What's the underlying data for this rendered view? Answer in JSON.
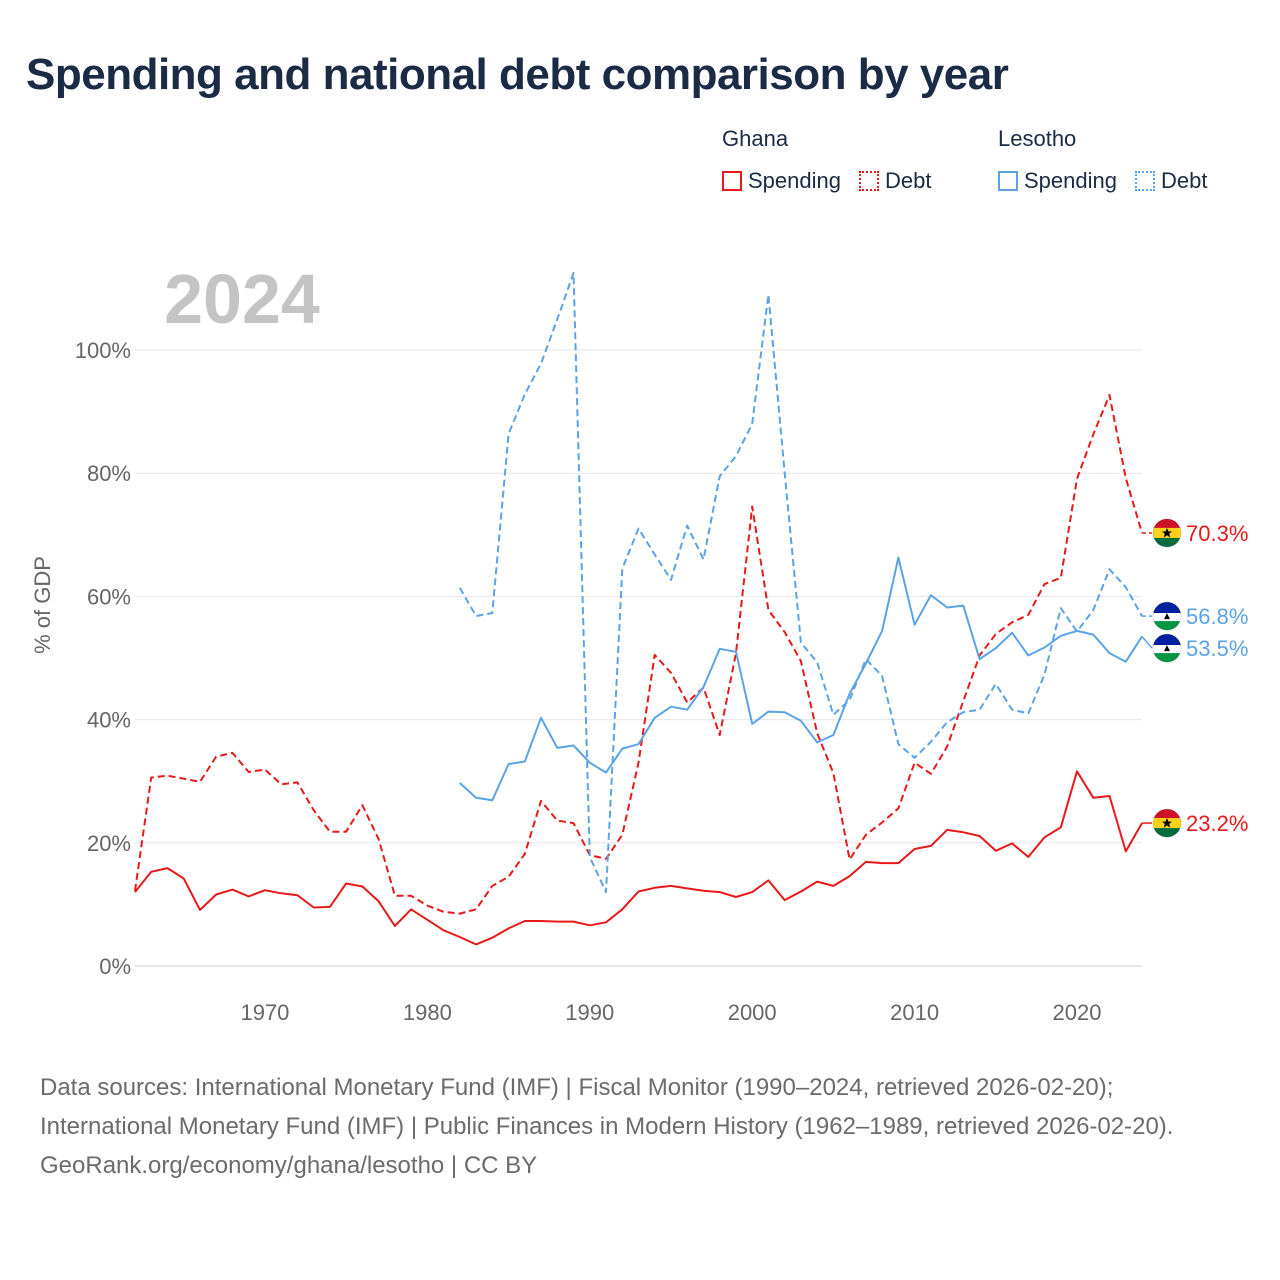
{
  "title": "Spending and national debt comparison by year",
  "legend": [
    {
      "country": "Ghana",
      "items": [
        {
          "label": "Spending",
          "style": "solid",
          "color": "#e8191a"
        },
        {
          "label": "Debt",
          "style": "dotted",
          "color": "#e8191a"
        }
      ]
    },
    {
      "country": "Lesotho",
      "items": [
        {
          "label": "Spending",
          "style": "solid",
          "color": "#5ba3e6"
        },
        {
          "label": "Debt",
          "style": "dotted",
          "color": "#5ba3e6"
        }
      ]
    }
  ],
  "footer": {
    "sources": "Data sources: International Monetary Fund (IMF) | Fiscal Monitor (1990–2024, retrieved 2026-02-20); International Monetary Fund (IMF) | Public Finances in Modern History (1962–1989, retrieved 2026-02-20).",
    "credit": "GeoRank.org/economy/ghana/lesotho | CC BY"
  },
  "chart_data": {
    "type": "line",
    "year_label": "2024",
    "ylabel": "% of GDP",
    "xlabel": "",
    "xlim": [
      1962,
      2024
    ],
    "ylim": [
      0,
      110
    ],
    "y_ticks": [
      0,
      20,
      40,
      60,
      80,
      100
    ],
    "y_tick_labels": [
      "0%",
      "20%",
      "40%",
      "60%",
      "80%",
      "100%"
    ],
    "x_ticks": [
      1970,
      1980,
      1990,
      2000,
      2010,
      2020
    ],
    "x_tick_labels": [
      "1970",
      "1980",
      "1990",
      "2000",
      "2010",
      "2020"
    ],
    "grid": true,
    "series": [
      {
        "name": "Ghana Spending",
        "country": "Ghana",
        "color": "#e8191a",
        "dash": false,
        "end_label": "23.2%",
        "flag": "ghana",
        "x": [
          1962,
          1963,
          1964,
          1965,
          1966,
          1967,
          1968,
          1969,
          1970,
          1971,
          1972,
          1973,
          1974,
          1975,
          1976,
          1977,
          1978,
          1979,
          1980,
          1981,
          1982,
          1983,
          1984,
          1985,
          1986,
          1987,
          1988,
          1989,
          1990,
          1991,
          1992,
          1993,
          1994,
          1995,
          1996,
          1997,
          1998,
          1999,
          2000,
          2001,
          2002,
          2003,
          2004,
          2005,
          2006,
          2007,
          2008,
          2009,
          2010,
          2011,
          2012,
          2013,
          2014,
          2015,
          2016,
          2017,
          2018,
          2019,
          2020,
          2021,
          2022,
          2023,
          2024
        ],
        "y": [
          12.0,
          15.3,
          15.9,
          14.2,
          9.1,
          11.6,
          12.4,
          11.3,
          12.3,
          11.8,
          11.5,
          9.5,
          9.6,
          13.4,
          12.9,
          10.5,
          6.5,
          9.2,
          7.5,
          5.8,
          4.7,
          3.5,
          4.6,
          6.1,
          7.3,
          7.3,
          7.2,
          7.2,
          6.6,
          7.1,
          9.2,
          12.1,
          12.7,
          13.0,
          12.6,
          12.2,
          12.0,
          11.2,
          12.0,
          13.9,
          10.7,
          12.1,
          13.7,
          13.0,
          14.6,
          16.9,
          16.7,
          16.7,
          19.0,
          19.5,
          22.1,
          21.7,
          21.1,
          18.7,
          19.9,
          17.7,
          20.9,
          22.5,
          31.6,
          27.3,
          27.6,
          18.6,
          23.2
        ]
      },
      {
        "name": "Ghana Debt",
        "country": "Ghana",
        "color": "#e8191a",
        "dash": true,
        "end_label": "70.3%",
        "flag": "ghana",
        "x": [
          1962,
          1963,
          1964,
          1965,
          1966,
          1967,
          1968,
          1969,
          1970,
          1971,
          1972,
          1973,
          1974,
          1975,
          1976,
          1977,
          1978,
          1979,
          1980,
          1981,
          1982,
          1983,
          1984,
          1985,
          1986,
          1987,
          1988,
          1989,
          1990,
          1991,
          1992,
          1993,
          1994,
          1995,
          1996,
          1997,
          1998,
          1999,
          2000,
          2001,
          2002,
          2003,
          2004,
          2005,
          2006,
          2007,
          2008,
          2009,
          2010,
          2011,
          2012,
          2013,
          2014,
          2015,
          2016,
          2017,
          2018,
          2019,
          2020,
          2021,
          2022,
          2023,
          2024
        ],
        "y": [
          12.2,
          30.6,
          30.9,
          30.4,
          29.9,
          34.0,
          34.6,
          31.5,
          31.9,
          29.5,
          29.8,
          25.3,
          21.8,
          21.8,
          26.1,
          20.6,
          11.4,
          11.4,
          9.8,
          8.8,
          8.5,
          9.2,
          13.0,
          14.5,
          18.2,
          26.8,
          23.6,
          23.2,
          18.0,
          17.4,
          21.3,
          33.0,
          50.5,
          47.6,
          42.8,
          45.2,
          37.5,
          50.8,
          74.6,
          57.8,
          54.2,
          49.5,
          37.8,
          31.3,
          17.3,
          21.3,
          23.3,
          25.6,
          33.0,
          31.2,
          35.6,
          43.0,
          50.4,
          53.9,
          55.8,
          57.0,
          62.0,
          63.0,
          79.1,
          86.3,
          92.7,
          79.2,
          70.3
        ]
      },
      {
        "name": "Lesotho Spending",
        "country": "Lesotho",
        "color": "#5ba3e6",
        "dash": false,
        "end_label": "53.5%",
        "flag": "lesotho",
        "x": [
          1982,
          1983,
          1984,
          1985,
          1986,
          1987,
          1988,
          1989,
          1990,
          1991,
          1992,
          1993,
          1994,
          1995,
          1996,
          1997,
          1998,
          1999,
          2000,
          2001,
          2002,
          2003,
          2004,
          2005,
          2006,
          2007,
          2008,
          2009,
          2010,
          2011,
          2012,
          2013,
          2014,
          2015,
          2016,
          2017,
          2018,
          2019,
          2020,
          2021,
          2022,
          2023,
          2024
        ],
        "y": [
          29.7,
          27.3,
          26.9,
          32.8,
          33.2,
          40.3,
          35.4,
          35.8,
          33.0,
          31.4,
          35.3,
          36.0,
          40.3,
          42.1,
          41.6,
          45.3,
          51.5,
          51.0,
          39.3,
          41.3,
          41.2,
          39.8,
          36.3,
          37.5,
          44.2,
          49.1,
          54.4,
          66.3,
          55.4,
          60.2,
          58.2,
          58.5,
          49.8,
          51.6,
          54.1,
          50.4,
          51.7,
          53.6,
          54.4,
          53.8,
          50.8,
          49.4,
          53.5
        ]
      },
      {
        "name": "Lesotho Debt",
        "country": "Lesotho",
        "color": "#5ba3e6",
        "dash": true,
        "end_label": "56.8%",
        "flag": "lesotho",
        "x": [
          1982,
          1983,
          1984,
          1985,
          1986,
          1987,
          1988,
          1989,
          1990,
          1991,
          1992,
          1993,
          1994,
          1995,
          1996,
          1997,
          1998,
          1999,
          2000,
          2001,
          2002,
          2003,
          2004,
          2005,
          2006,
          2007,
          2008,
          2009,
          2010,
          2011,
          2012,
          2013,
          2014,
          2015,
          2016,
          2017,
          2018,
          2019,
          2020,
          2021,
          2022,
          2023,
          2024
        ],
        "y": [
          61.4,
          56.8,
          57.3,
          86.4,
          92.8,
          97.8,
          105.0,
          112.5,
          17.7,
          12.0,
          64.5,
          71.0,
          66.8,
          62.7,
          71.5,
          66.0,
          79.5,
          82.8,
          88.0,
          109.0,
          80.0,
          52.5,
          49.3,
          40.8,
          43.2,
          49.8,
          47.1,
          36.0,
          33.8,
          36.4,
          39.6,
          41.2,
          41.6,
          45.8,
          41.6,
          41.0,
          47.3,
          58.1,
          54.3,
          57.8,
          64.4,
          61.5,
          56.8
        ]
      }
    ]
  }
}
